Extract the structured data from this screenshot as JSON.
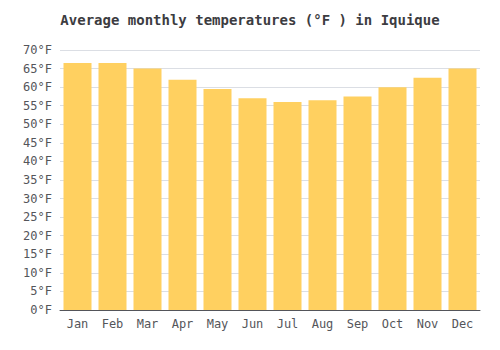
{
  "chart_data": {
    "type": "bar",
    "title": "Average monthly temperatures (°F ) in Iquique",
    "categories": [
      "Jan",
      "Feb",
      "Mar",
      "Apr",
      "May",
      "Jun",
      "Jul",
      "Aug",
      "Sep",
      "Oct",
      "Nov",
      "Dec"
    ],
    "values": [
      66.5,
      66.5,
      65.0,
      62.0,
      59.5,
      57.0,
      56.0,
      56.5,
      57.5,
      60.0,
      62.5,
      65.0
    ],
    "color": "#FFD060",
    "ylim": [
      0,
      70
    ],
    "yticks": [
      {
        "value": 0,
        "label": "0°F"
      },
      {
        "value": 5,
        "label": "5°F"
      },
      {
        "value": 10,
        "label": "10°F"
      },
      {
        "value": 15,
        "label": "15°F"
      },
      {
        "value": 20,
        "label": "20°F"
      },
      {
        "value": 25,
        "label": "25°F"
      },
      {
        "value": 30,
        "label": "30°F"
      },
      {
        "value": 35,
        "label": "35°F"
      },
      {
        "value": 40,
        "label": "40°F"
      },
      {
        "value": 45,
        "label": "45°F"
      },
      {
        "value": 50,
        "label": "50°F"
      },
      {
        "value": 55,
        "label": "55°F"
      },
      {
        "value": 60,
        "label": "60°F"
      },
      {
        "value": 65,
        "label": "65°F"
      },
      {
        "value": 70,
        "label": "70°F"
      }
    ],
    "grid": true
  }
}
